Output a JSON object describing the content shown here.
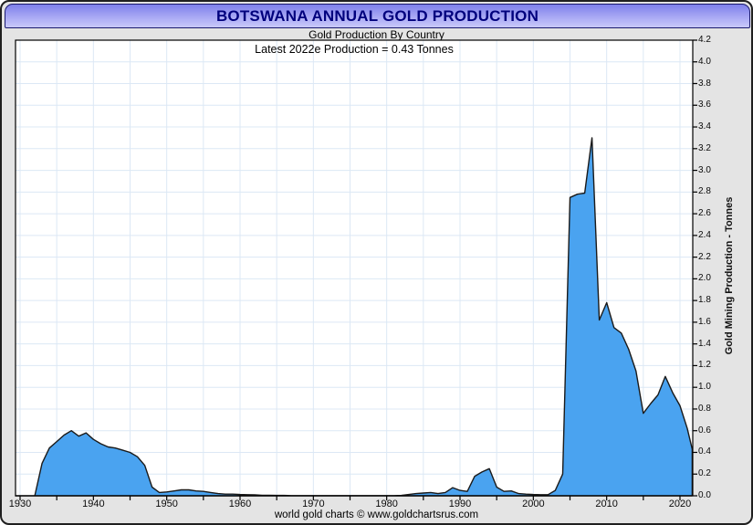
{
  "header": {
    "title": "BOTSWANA ANNUAL GOLD PRODUCTION",
    "subtitle": "Gold Production By Country"
  },
  "annotation": "Latest 2022e Production = 0.43 Tonnes",
  "footer": "world gold charts © www.goldchartsrus.com",
  "colors": {
    "titlebar_top": "#7e80ea",
    "titlebar_bottom": "#c9c9fa",
    "title_text": "#00007d",
    "frame_background": "#e4e4e4",
    "plot_background": "#ffffff",
    "gridline": "#dce8f5",
    "area_fill": "#4aa3f0",
    "area_line": "#1a1a1a",
    "axis": "#000000"
  },
  "chart_data": {
    "type": "area",
    "title": "BOTSWANA ANNUAL GOLD PRODUCTION",
    "subtitle": "Gold Production By Country",
    "annotation": "Latest 2022e Production = 0.43 Tonnes",
    "xlabel": "",
    "ylabel": "Gold Mining Production - Tonnes",
    "grid": true,
    "legend": "none",
    "ylim": [
      0,
      4.2
    ],
    "y_tick_step": 0.2,
    "y_tick_labels": [
      "0.0",
      "0.2",
      "0.4",
      "0.6",
      "0.8",
      "1.0",
      "1.2",
      "1.4",
      "1.6",
      "1.8",
      "2.0",
      "2.2",
      "2.4",
      "2.6",
      "2.8",
      "3.0",
      "3.2",
      "3.4",
      "3.6",
      "3.8",
      "4.0",
      "4.2"
    ],
    "x_major_ticks": [
      1930,
      1940,
      1950,
      1960,
      1970,
      1980,
      1990,
      2000,
      2010,
      2020
    ],
    "x_minor_tick_step": 5,
    "x": [
      1930,
      1931,
      1932,
      1933,
      1934,
      1935,
      1936,
      1937,
      1938,
      1939,
      1940,
      1941,
      1942,
      1943,
      1944,
      1945,
      1946,
      1947,
      1948,
      1949,
      1950,
      1951,
      1952,
      1953,
      1954,
      1955,
      1956,
      1957,
      1958,
      1959,
      1960,
      1961,
      1962,
      1963,
      1964,
      1965,
      1966,
      1967,
      1968,
      1969,
      1970,
      1971,
      1972,
      1973,
      1974,
      1975,
      1976,
      1977,
      1978,
      1979,
      1980,
      1981,
      1982,
      1983,
      1984,
      1985,
      1986,
      1987,
      1988,
      1989,
      1990,
      1991,
      1992,
      1993,
      1994,
      1995,
      1996,
      1997,
      1998,
      1999,
      2000,
      2001,
      2002,
      2003,
      2004,
      2005,
      2006,
      2007,
      2008,
      2009,
      2010,
      2011,
      2012,
      2013,
      2014,
      2015,
      2016,
      2017,
      2018,
      2019,
      2020,
      2021,
      2022
    ],
    "values": [
      0,
      0,
      0,
      0.3,
      0.44,
      0.5,
      0.56,
      0.6,
      0.55,
      0.58,
      0.52,
      0.48,
      0.45,
      0.44,
      0.42,
      0.4,
      0.36,
      0.28,
      0.08,
      0.03,
      0.035,
      0.045,
      0.055,
      0.055,
      0.045,
      0.04,
      0.03,
      0.02,
      0.015,
      0.015,
      0.012,
      0.01,
      0.008,
      0.005,
      0.004,
      0.003,
      0.003,
      0.002,
      0.002,
      0.002,
      0.002,
      0.002,
      0.002,
      0.002,
      0.002,
      0.002,
      0.002,
      0.002,
      0.002,
      0.002,
      0.002,
      0.002,
      0.003,
      0.012,
      0.02,
      0.025,
      0.03,
      0.02,
      0.03,
      0.075,
      0.05,
      0.04,
      0.18,
      0.22,
      0.25,
      0.08,
      0.04,
      0.045,
      0.02,
      0.015,
      0.012,
      0.01,
      0.01,
      0.05,
      0.2,
      2.75,
      2.78,
      2.79,
      3.3,
      1.62,
      1.78,
      1.55,
      1.5,
      1.35,
      1.15,
      0.76,
      0.85,
      0.93,
      1.1,
      0.95,
      0.83,
      0.62,
      0.43
    ],
    "latest_year": "2022e",
    "latest_value_tonnes": 0.43
  }
}
